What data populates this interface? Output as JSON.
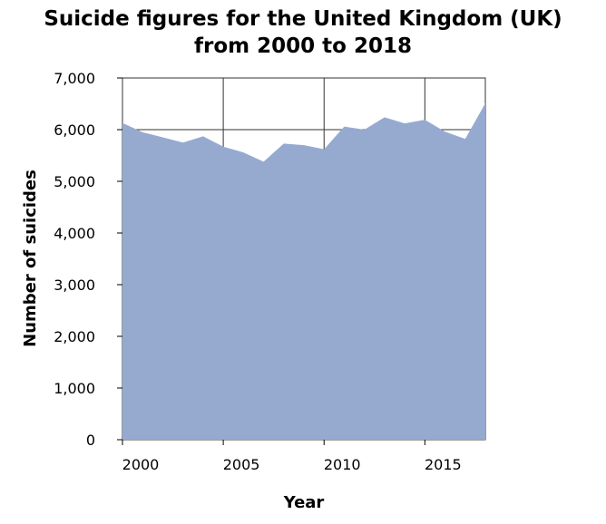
{
  "chart_data": {
    "type": "area",
    "title_lines": [
      "Suicide figures for the United Kingdom (UK)",
      "from 2000 to 2018"
    ],
    "xlabel": "Year",
    "ylabel": "Number of suicides",
    "xlim": [
      2000,
      2018
    ],
    "ylim": [
      0,
      7000
    ],
    "x_ticks": [
      2000,
      2005,
      2010,
      2015
    ],
    "x_tick_labels": [
      "2000",
      "2005",
      "2010",
      "2015"
    ],
    "y_ticks": [
      0,
      1000,
      2000,
      3000,
      4000,
      5000,
      6000,
      7000
    ],
    "y_tick_labels": [
      "0",
      "1,000",
      "2,000",
      "3,000",
      "4,000",
      "5,000",
      "6,000",
      "7,000"
    ],
    "grid": true,
    "x": [
      2000,
      2001,
      2002,
      2003,
      2004,
      2005,
      2006,
      2007,
      2008,
      2009,
      2010,
      2011,
      2012,
      2013,
      2014,
      2015,
      2016,
      2017,
      2018
    ],
    "values": [
      6130,
      5950,
      5850,
      5750,
      5870,
      5670,
      5560,
      5380,
      5730,
      5700,
      5620,
      6060,
      6000,
      6240,
      6120,
      6190,
      5960,
      5820,
      6510
    ],
    "fill_color": "#96aad0",
    "grid_color": "#333333"
  }
}
